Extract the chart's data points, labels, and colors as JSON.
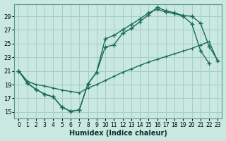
{
  "xlabel": "Humidex (Indice chaleur)",
  "bg_color": "#c8e8e0",
  "grid_color": "#a8ccc8",
  "line_color": "#1a6b5a",
  "xlim": [
    -0.5,
    23.5
  ],
  "ylim": [
    14.0,
    30.8
  ],
  "xticks": [
    0,
    1,
    2,
    3,
    4,
    5,
    6,
    7,
    8,
    9,
    10,
    11,
    12,
    13,
    14,
    15,
    16,
    17,
    18,
    19,
    20,
    21,
    22,
    23
  ],
  "yticks": [
    15,
    17,
    19,
    21,
    23,
    25,
    27,
    29
  ],
  "line1_x": [
    0,
    1,
    2,
    3,
    4,
    5,
    6,
    7,
    8,
    9,
    10,
    11,
    12,
    13,
    14,
    15,
    16,
    17,
    18,
    19,
    20,
    21,
    22
  ],
  "line1_y": [
    21.0,
    19.2,
    18.3,
    17.6,
    17.2,
    15.7,
    15.1,
    15.3,
    19.1,
    20.8,
    25.7,
    26.2,
    27.0,
    27.8,
    28.6,
    29.5,
    30.0,
    29.6,
    29.4,
    29.0,
    27.9,
    24.0,
    22.1
  ],
  "line2_x": [
    0,
    1,
    2,
    3,
    4,
    5,
    6,
    7,
    8,
    9,
    10,
    11,
    12,
    13,
    14,
    15,
    16,
    17,
    18,
    19,
    20,
    21,
    22,
    23
  ],
  "line2_y": [
    21.0,
    19.2,
    18.3,
    17.6,
    17.2,
    15.7,
    15.1,
    15.3,
    19.1,
    20.8,
    24.5,
    24.8,
    26.5,
    27.2,
    28.2,
    29.2,
    30.3,
    29.8,
    29.5,
    29.1,
    29.0,
    28.0,
    24.6,
    22.5
  ],
  "line3_x": [
    0,
    1,
    2,
    3,
    4,
    5,
    6,
    7,
    8,
    9,
    10,
    11,
    12,
    13,
    14,
    15,
    16,
    17,
    18,
    19,
    20,
    21,
    22,
    23
  ],
  "line3_y": [
    21.0,
    19.5,
    19.0,
    18.8,
    18.5,
    18.2,
    18.0,
    17.8,
    18.5,
    19.0,
    19.6,
    20.2,
    20.8,
    21.3,
    21.8,
    22.3,
    22.7,
    23.1,
    23.5,
    23.9,
    24.3,
    24.8,
    25.3,
    22.4
  ]
}
